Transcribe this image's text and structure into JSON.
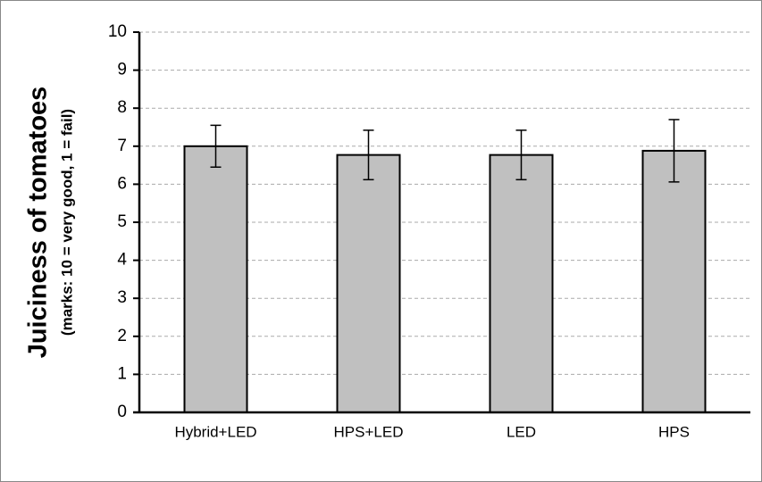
{
  "chart_data": {
    "type": "bar",
    "y_label": "Juiciness of tomatoes",
    "y_sublabel": "(marks: 10 = very good, 1 = fail)",
    "categories": [
      "Hybrid+LED",
      "HPS+LED",
      "LED",
      "HPS"
    ],
    "values": [
      7.0,
      6.77,
      6.77,
      6.88
    ],
    "errors": [
      0.55,
      0.65,
      0.65,
      0.82
    ],
    "color": "#c0c0c0",
    "ylim": [
      0,
      10
    ],
    "yticks": [
      0,
      1,
      2,
      3,
      4,
      5,
      6,
      7,
      8,
      9,
      10
    ],
    "grid": true
  }
}
